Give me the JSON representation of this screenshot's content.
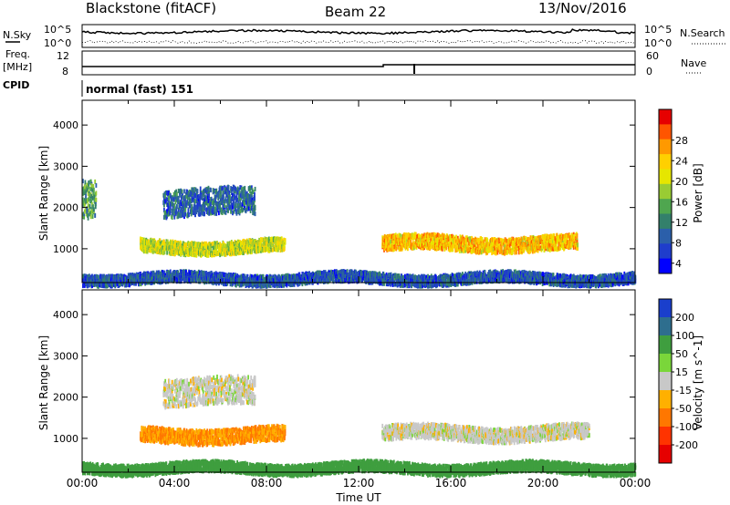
{
  "header": {
    "station": "Blackstone (fitACF)",
    "beam": "Beam 22",
    "date": "13/Nov/2016"
  },
  "left_labels": {
    "nsky": "N.Sky",
    "freq": "Freq.",
    "freq_unit": "[MHz]",
    "cpid": "CPID"
  },
  "right_labels": {
    "nsearch": "N.Search",
    "nave": "Nave"
  },
  "noise_axis": {
    "top_tick": "10^5",
    "bottom_tick": "10^0"
  },
  "freq_axis": {
    "tick_12": "12",
    "tick_8": "8"
  },
  "nave_axis": {
    "tick_60": "60",
    "tick_0": "0"
  },
  "cpid_text": "normal (fast) 151",
  "chart_data": [
    {
      "type": "heatmap",
      "xlabel": "Time UT",
      "ylabel": "Slant Range [km]",
      "xlim": [
        0,
        24
      ],
      "ylim": [
        180,
        4600
      ],
      "x_ticks": [
        "00:00",
        "04:00",
        "08:00",
        "12:00",
        "16:00",
        "20:00",
        "00:00"
      ],
      "y_ticks": [
        1000,
        2000,
        3000,
        4000
      ],
      "colorbar": {
        "label": "Power [dB]",
        "ticks": [
          "28",
          "24",
          "20",
          "16",
          "12",
          "8",
          "4"
        ],
        "colors": [
          "#e60000",
          "#ff5500",
          "#ff9900",
          "#ffd000",
          "#e6e600",
          "#99cc33",
          "#4fa64f",
          "#33806b",
          "#2b5faa",
          "#1f3dcc",
          "#0000ff"
        ]
      },
      "bands": [
        {
          "t": [
            2.5,
            8.8
          ],
          "r": [
            950,
            1250
          ],
          "level": 16
        },
        {
          "t": [
            13.0,
            21.5
          ],
          "r": [
            1000,
            1350
          ],
          "level": 20
        },
        {
          "t": [
            3.5,
            7.5
          ],
          "r": [
            1850,
            2500
          ],
          "level": 6
        },
        {
          "t": [
            0.0,
            0.6
          ],
          "r": [
            1800,
            2700
          ],
          "level": 10
        },
        {
          "t": [
            0.0,
            24.0
          ],
          "r": [
            200,
            450
          ],
          "level": 5
        }
      ]
    },
    {
      "type": "heatmap",
      "xlabel": "Time UT",
      "ylabel": "Slant Range [km]",
      "xlim": [
        0,
        24
      ],
      "ylim": [
        180,
        4600
      ],
      "x_ticks": [
        "00:00",
        "04:00",
        "08:00",
        "12:00",
        "16:00",
        "20:00",
        "00:00"
      ],
      "y_ticks": [
        1000,
        2000,
        3000,
        4000
      ],
      "colorbar": {
        "label": "Velocity [m s^-1]",
        "ticks": [
          "200",
          "100",
          "50",
          "15",
          "-15",
          "-50",
          "-100",
          "-200"
        ],
        "colors": [
          "#1a3fcc",
          "#2e6e8e",
          "#3f9e3f",
          "#7ad63a",
          "#c8c8c8",
          "#ffb000",
          "#ff7700",
          "#ff3300",
          "#e60000"
        ]
      },
      "bands": [
        {
          "t": [
            2.5,
            8.8
          ],
          "r": [
            950,
            1300
          ],
          "vel": -50
        },
        {
          "t": [
            13.0,
            22.0
          ],
          "r": [
            1000,
            1350
          ],
          "vel": 0
        },
        {
          "t": [
            3.5,
            7.5
          ],
          "r": [
            1850,
            2500
          ],
          "vel": 0
        },
        {
          "t": [
            0.0,
            24.0
          ],
          "r": [
            200,
            450
          ],
          "vel": 50
        }
      ]
    }
  ],
  "colors": {
    "missing": "#ffffff",
    "ground": "#c8c8c8"
  }
}
